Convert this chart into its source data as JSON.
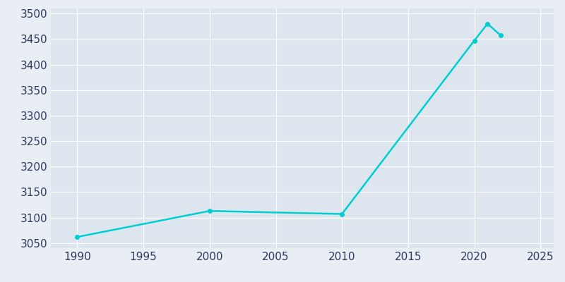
{
  "years": [
    1990,
    2000,
    2010,
    2020,
    2021,
    2022
  ],
  "population": [
    3062,
    3113,
    3107,
    3447,
    3480,
    3457
  ],
  "line_color": "#00CED1",
  "bg_color": "#E8EEF4",
  "plot_bg_color": "#DDE6EF",
  "tick_label_color": "#2D3A5E",
  "xlim": [
    1988,
    2026
  ],
  "ylim": [
    3040,
    3510
  ],
  "yticks": [
    3050,
    3100,
    3150,
    3200,
    3250,
    3300,
    3350,
    3400,
    3450,
    3500
  ],
  "xticks": [
    1990,
    1995,
    2000,
    2005,
    2010,
    2015,
    2020,
    2025
  ],
  "linewidth": 1.8,
  "marker": "o",
  "markersize": 4
}
